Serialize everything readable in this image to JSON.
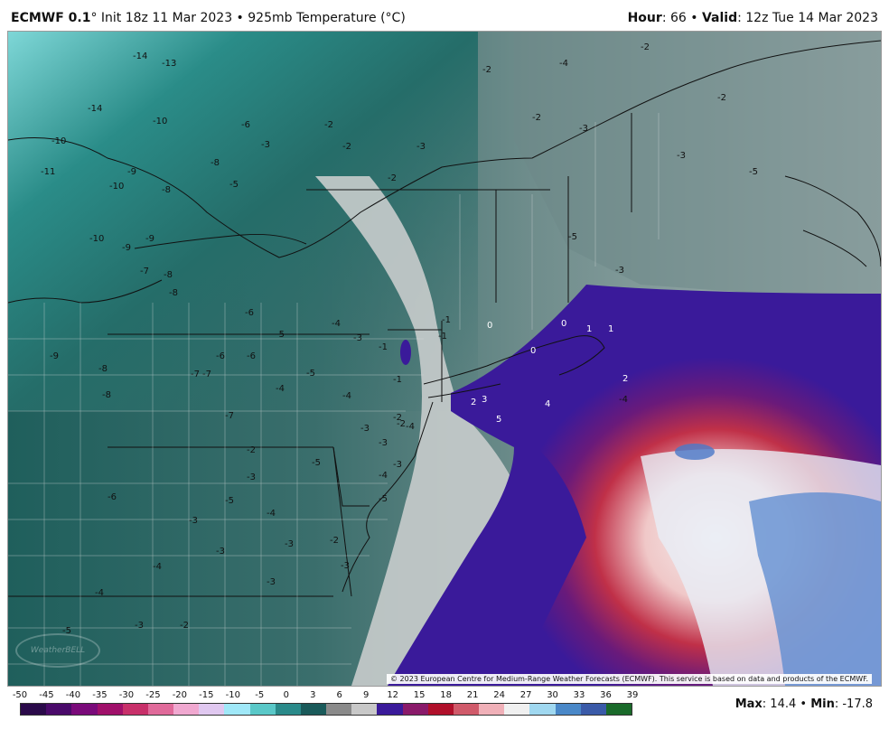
{
  "header": {
    "model": "ECMWF 0.1",
    "init": "° Init 18z 11 Mar 2023 • 925mb Temperature (°C)",
    "hour_label": "Hour",
    "hour_value": ": 66 • ",
    "valid_label": "Valid",
    "valid_value": ": 12z Tue 14 Mar 2023"
  },
  "map": {
    "copyright": "© 2023 European Centre for Medium-Range Weather Forecasts (ECMWF). This service is based on data and products of the ECMWF.",
    "watermark": "WeatherBELL",
    "labels": [
      {
        "t": "-14"
      },
      {
        "t": "-13"
      },
      {
        "t": "-14"
      },
      {
        "t": "-10"
      },
      {
        "t": "-10"
      },
      {
        "t": "-11"
      },
      {
        "t": "-10"
      },
      {
        "t": "-9"
      },
      {
        "t": "-8"
      },
      {
        "t": "-6"
      },
      {
        "t": "-5"
      },
      {
        "t": "-3"
      },
      {
        "t": "-2"
      },
      {
        "t": "-2"
      },
      {
        "t": "-3"
      },
      {
        "t": "-2"
      },
      {
        "t": "-4"
      },
      {
        "t": "-2"
      },
      {
        "t": "-2"
      },
      {
        "t": "-3"
      },
      {
        "t": "-2"
      },
      {
        "t": "-5"
      },
      {
        "t": "-3"
      },
      {
        "t": "-2"
      },
      {
        "t": "-10"
      },
      {
        "t": "-9"
      },
      {
        "t": "-9"
      },
      {
        "t": "-8"
      },
      {
        "t": "-7"
      },
      {
        "t": "-8"
      },
      {
        "t": "-8"
      },
      {
        "t": "-6"
      },
      {
        "t": "-5"
      },
      {
        "t": "-4"
      },
      {
        "t": "-3"
      },
      {
        "t": "-1"
      },
      {
        "t": "-1"
      },
      {
        "t": "0"
      },
      {
        "t": "0"
      },
      {
        "t": "1"
      },
      {
        "t": "0"
      },
      {
        "t": "1"
      },
      {
        "t": "2"
      },
      {
        "t": "3"
      },
      {
        "t": "4"
      },
      {
        "t": "5"
      },
      {
        "t": "2"
      },
      {
        "t": "-4"
      },
      {
        "t": "-9"
      },
      {
        "t": "-8"
      },
      {
        "t": "-7"
      },
      {
        "t": "-6"
      },
      {
        "t": "-5"
      },
      {
        "t": "-4"
      },
      {
        "t": "-3"
      },
      {
        "t": "-2"
      },
      {
        "t": "-8"
      },
      {
        "t": "-7"
      },
      {
        "t": "-6"
      },
      {
        "t": "-5"
      },
      {
        "t": "-4"
      },
      {
        "t": "-3"
      },
      {
        "t": "-3"
      },
      {
        "t": "-4"
      },
      {
        "t": "-3"
      },
      {
        "t": "-2"
      },
      {
        "t": "-3"
      },
      {
        "t": "-3"
      },
      {
        "t": "-4"
      },
      {
        "t": "-5"
      },
      {
        "t": "-3"
      },
      {
        "t": "-2"
      },
      {
        "t": "-1"
      },
      {
        "t": "-1"
      },
      {
        "t": "-2"
      },
      {
        "t": "-3"
      },
      {
        "t": "-4"
      },
      {
        "t": "-5"
      },
      {
        "t": "-6"
      },
      {
        "t": "-7"
      },
      {
        "t": "-4"
      },
      {
        "t": "-3"
      },
      {
        "t": "-5"
      },
      {
        "t": "-4"
      },
      {
        "t": "-3"
      },
      {
        "t": "-2"
      },
      {
        "t": "-5"
      },
      {
        "t": "-3"
      }
    ]
  },
  "legend": {
    "ticks": [
      "-50",
      "-45",
      "-40",
      "-35",
      "-30",
      "-25",
      "-20",
      "-15",
      "-10",
      "-5",
      "0",
      "3",
      "6",
      "9",
      "12",
      "15",
      "18",
      "21",
      "24",
      "27",
      "30",
      "33",
      "36",
      "39"
    ],
    "colors": [
      "#2a0a4a",
      "#4a0a6a",
      "#7a0a7a",
      "#a0106a",
      "#c8306a",
      "#e06a9a",
      "#f0a8d0",
      "#e0c8f0",
      "#a0e8f8",
      "#5ac8c8",
      "#2a8a8a",
      "#1a5a5a",
      "#8a8a8a",
      "#c8c8c8",
      "#3a1a9a",
      "#8a1a6a",
      "#b0102a",
      "#d05a6a",
      "#f0b0b8",
      "#f0f0f0",
      "#a0d8f0",
      "#4a88c8",
      "#3a5aa8",
      "#1a6a2a"
    ],
    "max_label": "Max",
    "max_value": ": 14.4 • ",
    "min_label": "Min",
    "min_value": ": -17.8"
  }
}
